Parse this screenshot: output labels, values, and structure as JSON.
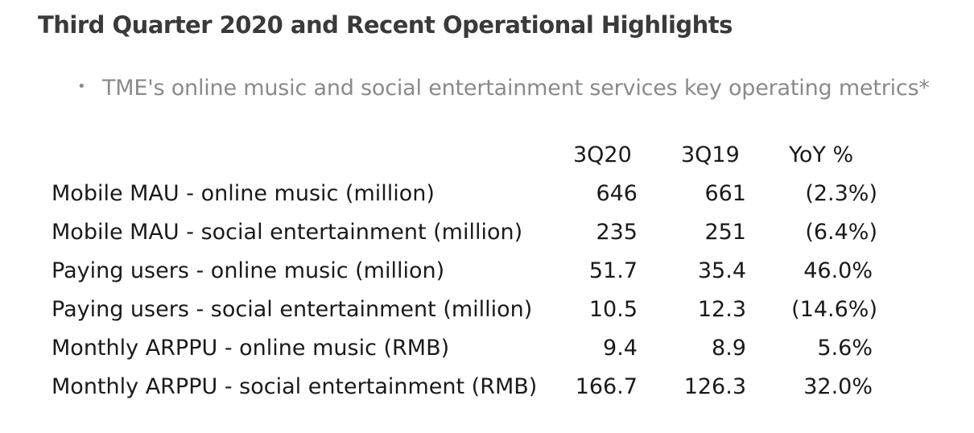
{
  "title": "Third Quarter 2020 and Recent Operational Highlights",
  "bullet": "TME's online music and social entertainment services key operating metrics*",
  "table": {
    "headers": [
      "3Q20",
      "3Q19",
      "YoY %"
    ],
    "rows": [
      {
        "label": "Mobile MAU - online music (million)",
        "q20": "646",
        "q19": "661",
        "yoy": "(2.3%)"
      },
      {
        "label": "Mobile MAU - social entertainment (million)",
        "q20": "235",
        "q19": "251",
        "yoy": "(6.4%)"
      },
      {
        "label": "Paying users - online music (million)",
        "q20": "51.7",
        "q19": "35.4",
        "yoy": "46.0%"
      },
      {
        "label": "Paying users - social entertainment (million)",
        "q20": "10.5",
        "q19": "12.3",
        "yoy": "(14.6%)"
      },
      {
        "label": "Monthly ARPPU - online music (RMB)",
        "q20": "9.4",
        "q19": "8.9",
        "yoy": "5.6%"
      },
      {
        "label": "Monthly ARPPU - social entertainment (RMB)",
        "q20": "166.7",
        "q19": "126.3",
        "yoy": "32.0%"
      }
    ]
  }
}
